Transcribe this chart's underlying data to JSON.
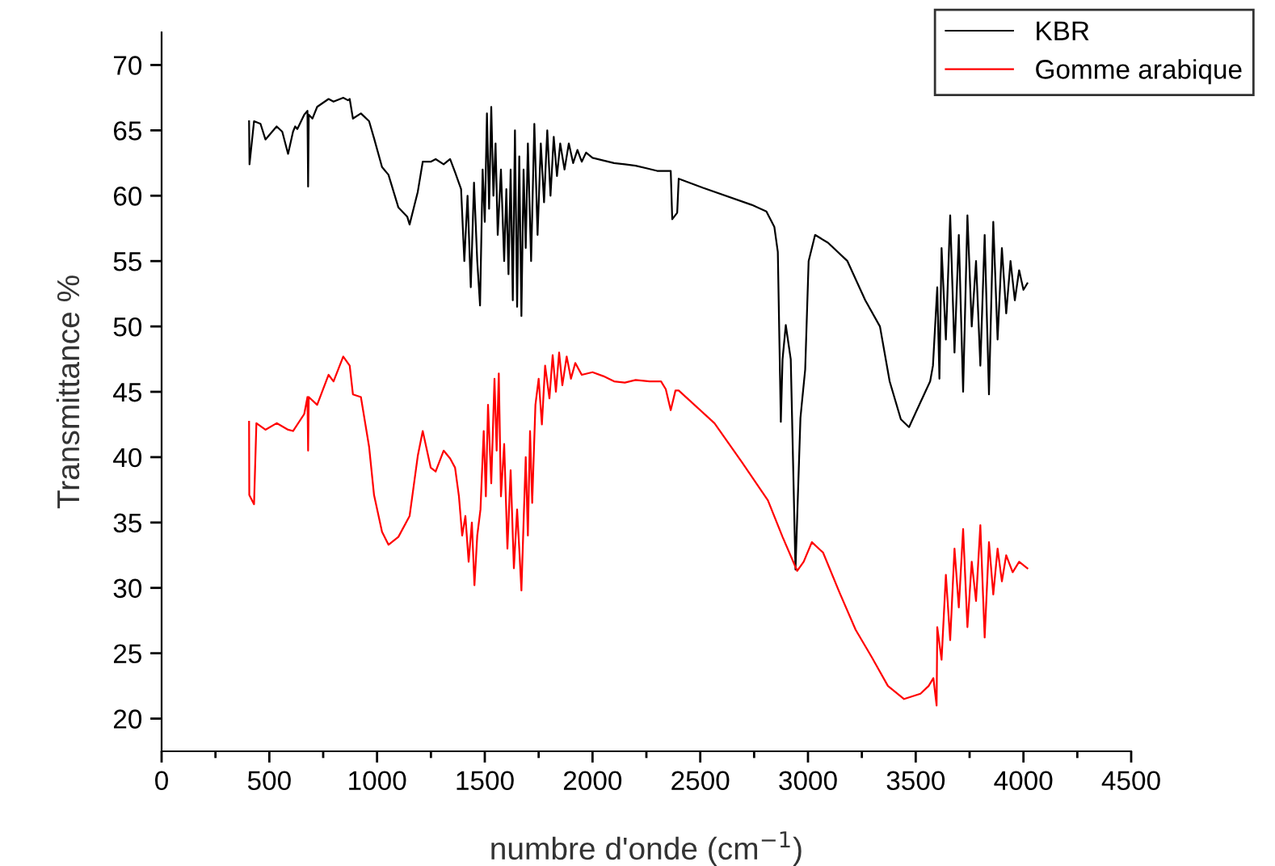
{
  "chart_data": {
    "type": "line",
    "xlabel": "numbre d'onde (cm$^{−1}$)",
    "ylabel": "Transmittance %",
    "xlim": [
      0,
      4500
    ],
    "ylim": [
      17.5,
      72.5
    ],
    "xticks": [
      0,
      {
        "value": 250,
        "label": null
      },
      500,
      {
        "value": 750,
        "label": null
      },
      1000,
      {
        "value": 1250,
        "label": null
      },
      1500,
      {
        "value": 1750,
        "label": null
      },
      2000,
      {
        "value": 2250,
        "label": null
      },
      2500,
      {
        "value": 2750,
        "label": null
      },
      3000,
      {
        "value": 3250,
        "label": null
      },
      3500,
      {
        "value": 3750,
        "label": null
      },
      4000,
      {
        "value": 4250,
        "label": null
      },
      4500
    ],
    "yticks": [
      20,
      25,
      30,
      35,
      40,
      45,
      50,
      55,
      60,
      65,
      70
    ],
    "grid": false,
    "legend": "top right",
    "marker": "none",
    "line_style": "solid",
    "series": [
      {
        "name": "KBR",
        "color": "#000000",
        "x": [
          406,
          408,
          429,
          459,
          482,
          534,
          560,
          587,
          610,
          620,
          630,
          662,
          677,
          680,
          683,
          700,
          722,
          775,
          798,
          843,
          865,
          873,
          888,
          925,
          963,
          986,
          1023,
          1053,
          1099,
          1140,
          1151,
          1189,
          1212,
          1249,
          1272,
          1309,
          1339,
          1362,
          1390,
          1405,
          1420,
          1435,
          1450,
          1465,
          1478,
          1490,
          1500,
          1510,
          1520,
          1530,
          1540,
          1550,
          1560,
          1575,
          1590,
          1600,
          1610,
          1620,
          1630,
          1640,
          1650,
          1660,
          1670,
          1680,
          1690,
          1700,
          1715,
          1730,
          1745,
          1760,
          1775,
          1790,
          1805,
          1820,
          1835,
          1850,
          1870,
          1890,
          1910,
          1930,
          1950,
          1970,
          2000,
          2050,
          2100,
          2150,
          2200,
          2250,
          2300,
          2340,
          2363,
          2370,
          2393,
          2400,
          2513,
          2739,
          2807,
          2844,
          2860,
          2874,
          2882,
          2897,
          2920,
          2942,
          2965,
          2972,
          2987,
          3003,
          3033,
          3093,
          3183,
          3266,
          3334,
          3379,
          3431,
          3469,
          3522,
          3567,
          3580,
          3600,
          3610,
          3620,
          3640,
          3660,
          3680,
          3700,
          3720,
          3740,
          3760,
          3780,
          3800,
          3820,
          3840,
          3860,
          3880,
          3900,
          3920,
          3940,
          3960,
          3980,
          4000,
          4018
        ],
        "values": [
          65.7,
          62.4,
          65.7,
          65.5,
          64.3,
          65.3,
          64.9,
          63.2,
          64.9,
          65.3,
          65.1,
          66.2,
          66.5,
          60.7,
          66.2,
          65.9,
          66.8,
          67.4,
          67.2,
          67.5,
          67.3,
          67.4,
          65.9,
          66.3,
          65.7,
          64.4,
          62.2,
          61.6,
          59.1,
          58.4,
          57.8,
          60.3,
          62.6,
          62.6,
          62.8,
          62.4,
          62.8,
          61.8,
          60.5,
          55,
          60,
          53,
          61,
          55,
          51.6,
          62,
          58,
          66.3,
          59,
          66.8,
          60,
          64,
          57,
          62,
          55,
          60.5,
          54,
          62,
          52,
          65,
          51.5,
          63,
          50.8,
          62,
          56,
          64,
          55,
          65.5,
          57,
          64,
          59.5,
          65,
          60,
          64.5,
          61.5,
          64,
          62,
          64,
          62.5,
          63.5,
          62.6,
          63.3,
          62.9,
          62.7,
          62.5,
          62.4,
          62.3,
          62.1,
          61.9,
          61.9,
          61.9,
          58.2,
          58.7,
          61.3,
          60.6,
          59.3,
          58.8,
          57.6,
          55.7,
          42.7,
          47.5,
          50.1,
          47.5,
          31.4,
          43.0,
          44.2,
          46.7,
          55.0,
          57.0,
          56.4,
          55.0,
          52.0,
          50.0,
          45.8,
          42.9,
          42.3,
          44.2,
          45.8,
          47,
          53,
          46,
          56,
          49,
          58.5,
          48,
          57,
          45,
          58.5,
          50,
          55,
          47,
          57,
          44.8,
          58,
          49,
          56,
          51,
          55,
          52,
          54.3,
          52.8,
          53.3
        ]
      },
      {
        "name": "Gomme arabique",
        "color": "#ff0000",
        "x": [
          406,
          407,
          429,
          440,
          482,
          534,
          587,
          610,
          662,
          677,
          680,
          683,
          722,
          775,
          798,
          843,
          873,
          888,
          925,
          963,
          986,
          1023,
          1053,
          1099,
          1151,
          1189,
          1212,
          1249,
          1272,
          1309,
          1339,
          1362,
          1380,
          1395,
          1410,
          1425,
          1440,
          1452,
          1465,
          1480,
          1495,
          1505,
          1515,
          1530,
          1545,
          1555,
          1565,
          1575,
          1590,
          1605,
          1620,
          1635,
          1650,
          1660,
          1670,
          1680,
          1690,
          1700,
          1710,
          1720,
          1735,
          1750,
          1765,
          1780,
          1800,
          1815,
          1830,
          1845,
          1860,
          1880,
          1900,
          1920,
          1950,
          2000,
          2050,
          2100,
          2150,
          2200,
          2265,
          2318,
          2340,
          2363,
          2385,
          2400,
          2566,
          2694,
          2814,
          2882,
          2950,
          2980,
          3018,
          3070,
          3145,
          3221,
          3296,
          3371,
          3446,
          3522,
          3560,
          3582,
          3597,
          3600,
          3620,
          3640,
          3660,
          3680,
          3700,
          3720,
          3740,
          3760,
          3780,
          3800,
          3820,
          3840,
          3860,
          3880,
          3900,
          3920,
          3950,
          3980,
          4018
        ],
        "values": [
          42.7,
          37.1,
          36.4,
          42.6,
          42.1,
          42.6,
          42.1,
          42.0,
          43.3,
          44.6,
          40.5,
          44.6,
          44.0,
          46.3,
          45.8,
          47.7,
          47.0,
          44.8,
          44.6,
          40.8,
          37.1,
          34.3,
          33.3,
          33.9,
          35.5,
          40.1,
          42.0,
          39.2,
          38.9,
          40.5,
          39.9,
          39.2,
          37,
          34,
          35.5,
          32,
          35,
          30.2,
          34,
          36,
          42,
          37,
          44,
          38,
          46,
          40.5,
          46.4,
          37,
          41,
          33,
          39,
          31.5,
          36,
          33,
          29.8,
          35,
          40,
          34,
          42,
          36.5,
          44,
          46,
          42.5,
          47,
          44.5,
          47.8,
          45,
          48,
          45.5,
          47.7,
          46,
          47.2,
          46.3,
          46.5,
          46.2,
          45.8,
          45.7,
          45.9,
          45.8,
          45.8,
          45.2,
          43.6,
          45.1,
          45.1,
          42.6,
          39.6,
          36.7,
          33.9,
          31.3,
          32.0,
          33.5,
          32.7,
          29.7,
          26.8,
          24.7,
          22.5,
          21.5,
          21.9,
          22.5,
          23.1,
          21.0,
          27,
          24.5,
          31,
          26,
          33,
          28.5,
          34.5,
          27,
          32,
          29,
          34.8,
          26.2,
          33.5,
          29.5,
          33,
          30.5,
          32.5,
          31.2,
          32,
          31.5
        ]
      }
    ]
  }
}
